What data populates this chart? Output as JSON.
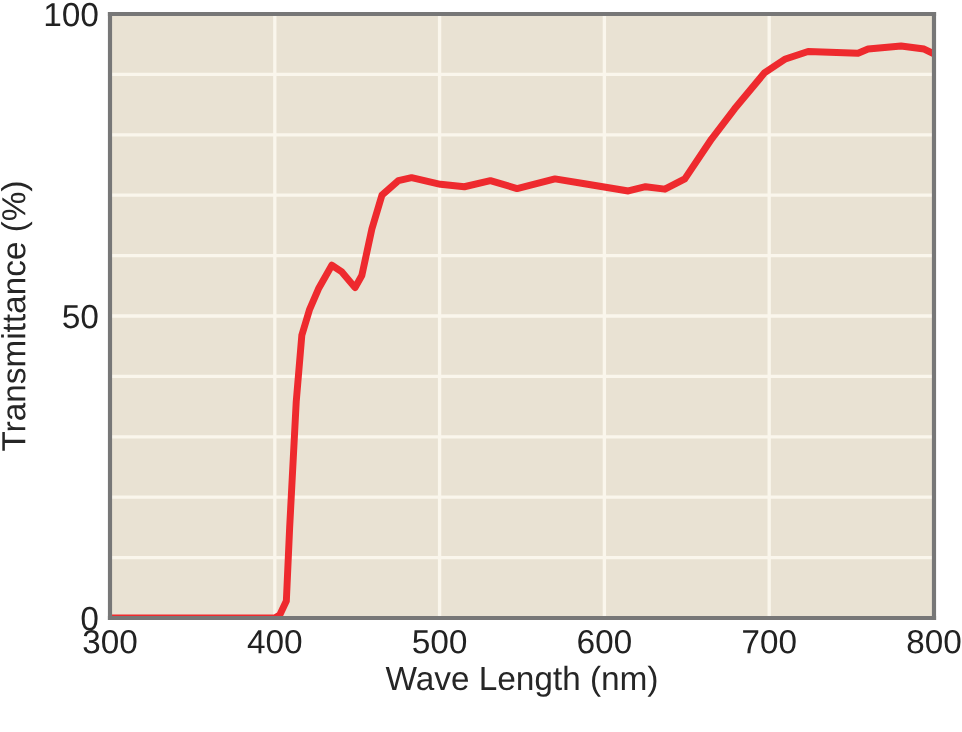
{
  "chart_data": {
    "type": "line",
    "xlabel": "Wave Length (nm)",
    "ylabel": "Transmittance (%)",
    "xlim": [
      300,
      800
    ],
    "xticks": [
      300,
      400,
      500,
      600,
      700,
      800
    ],
    "ylim": [
      0,
      100
    ],
    "yticks": [
      0,
      {
        "value": 10,
        "label": null
      },
      {
        "value": 20,
        "label": null
      },
      {
        "value": 30,
        "label": null
      },
      {
        "value": 40,
        "label": null
      },
      50,
      {
        "value": 60,
        "label": null
      },
      {
        "value": 70,
        "label": null
      },
      {
        "value": 80,
        "label": null
      },
      {
        "value": 90,
        "label": null
      },
      100
    ],
    "grid": true,
    "marker": "none",
    "line_style": "solid",
    "series": [
      {
        "color": "#ee2a2e",
        "x": [
          300,
          400,
          403,
          407,
          409,
          413,
          416.4,
          421,
          426.5,
          434.6,
          440.7,
          448.7,
          452.8,
          458.9,
          465,
          475,
          483,
          500.5,
          515,
          530.8,
          547,
          570,
          588,
          614.5,
          625,
          636.7,
          648.8,
          665,
          679,
          697.3,
          709.4,
          723.6,
          753.9,
          760,
          780,
          794,
          800
        ],
        "values": [
          0,
          0,
          0.5,
          2.8,
          14.9,
          35.8,
          46.8,
          51,
          54.5,
          58.4,
          57.3,
          54.7,
          56.7,
          64.4,
          70,
          72.4,
          72.9,
          71.8,
          71.4,
          72.4,
          71.1,
          72.7,
          71.9,
          70.7,
          71.4,
          71,
          72.7,
          79.3,
          84.3,
          90.3,
          92.5,
          93.8,
          93.5,
          94.2,
          94.7,
          94.2,
          93.4
        ]
      }
    ]
  }
}
